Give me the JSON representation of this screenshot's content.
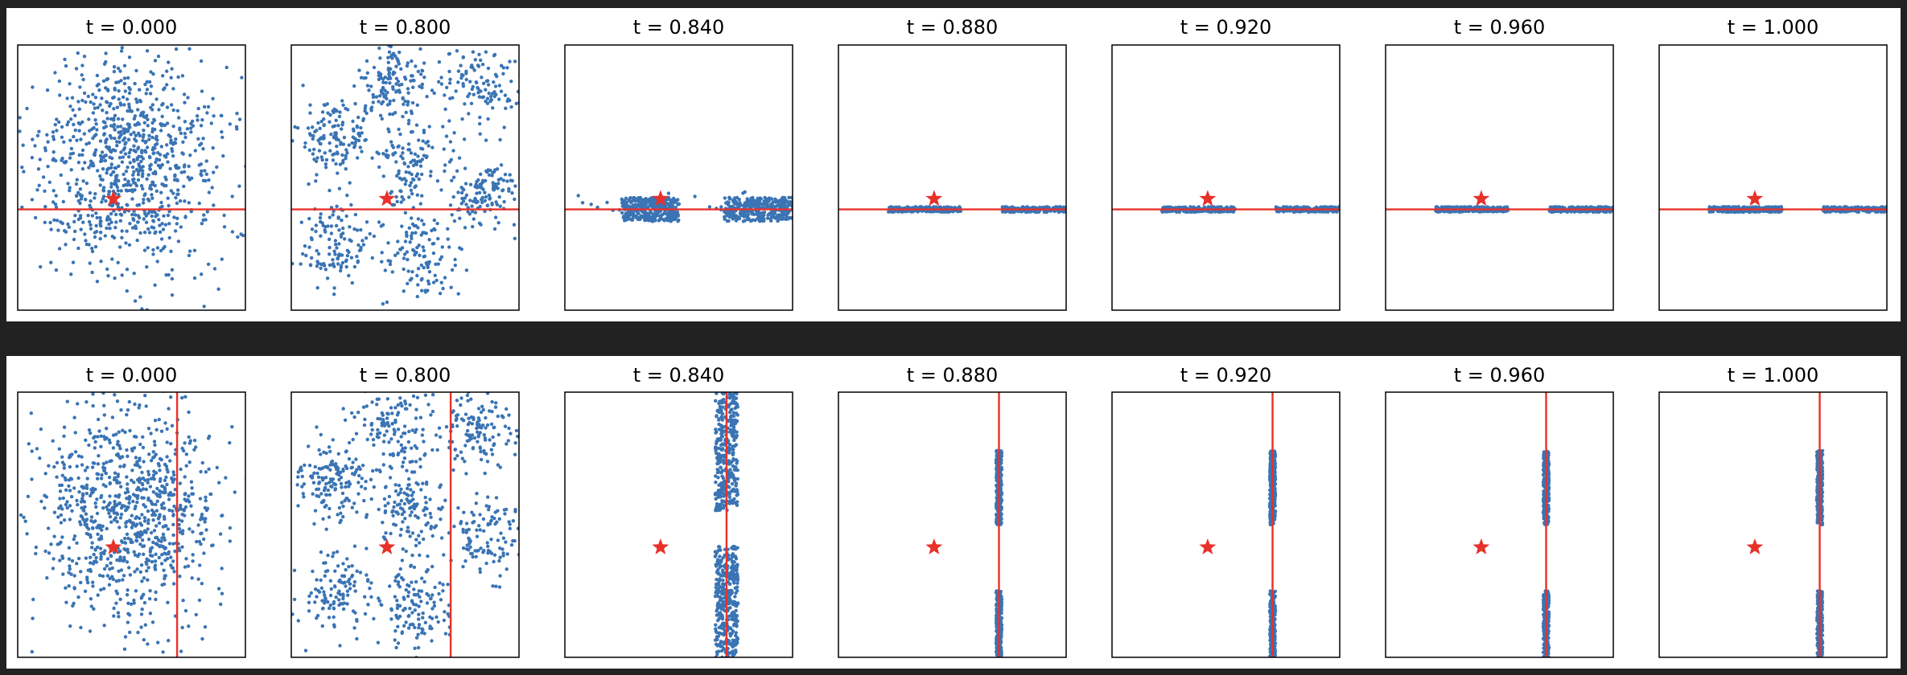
{
  "chart_data": [
    {
      "type": "scatter",
      "row": "top",
      "constraint": "horizontal line",
      "constraint_color": "#e8312a",
      "point_color": "#3a74b4",
      "star_color": "#e8312a",
      "panels": [
        {
          "title": "t = 0.000",
          "state": "gaussian"
        },
        {
          "title": "t = 0.800",
          "state": "mixture"
        },
        {
          "title": "t = 0.840",
          "state": "near-line"
        },
        {
          "title": "t = 0.880",
          "state": "on-line"
        },
        {
          "title": "t = 0.920",
          "state": "on-line"
        },
        {
          "title": "t = 0.960",
          "state": "on-line"
        },
        {
          "title": "t = 1.000",
          "state": "on-line"
        }
      ]
    },
    {
      "type": "scatter",
      "row": "bottom",
      "constraint": "vertical line",
      "constraint_color": "#e8312a",
      "point_color": "#3a74b4",
      "star_color": "#e8312a",
      "panels": [
        {
          "title": "t = 0.000",
          "state": "gaussian"
        },
        {
          "title": "t = 0.800",
          "state": "mixture"
        },
        {
          "title": "t = 0.840",
          "state": "near-line"
        },
        {
          "title": "t = 0.880",
          "state": "on-line"
        },
        {
          "title": "t = 0.920",
          "state": "on-line"
        },
        {
          "title": "t = 0.960",
          "state": "on-line"
        },
        {
          "title": "t = 1.000",
          "state": "on-line"
        }
      ]
    }
  ]
}
